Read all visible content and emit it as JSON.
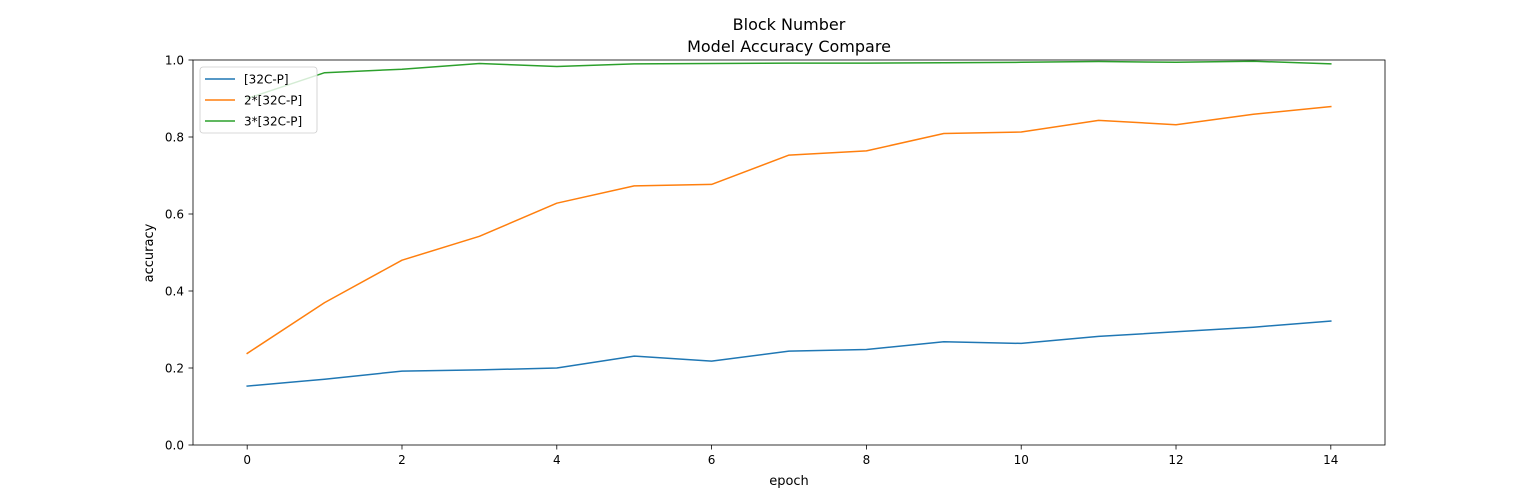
{
  "chart_data": {
    "type": "line",
    "title": "Block Number",
    "subtitle": "Model Accuracy Compare",
    "xlabel": "epoch",
    "ylabel": "accuracy",
    "xlim": [
      -0.7,
      14.7
    ],
    "ylim": [
      0.0,
      1.0
    ],
    "xticks": [
      0,
      2,
      4,
      6,
      8,
      10,
      12,
      14
    ],
    "yticks": [
      0.0,
      0.2,
      0.4,
      0.6,
      0.8,
      1.0
    ],
    "xtick_labels": [
      "0",
      "2",
      "4",
      "6",
      "8",
      "10",
      "12",
      "14"
    ],
    "ytick_labels": [
      "0.0",
      "0.2",
      "0.4",
      "0.6",
      "0.8",
      "1.0"
    ],
    "grid": false,
    "legend_position": "top-left",
    "x": [
      0,
      1,
      2,
      3,
      4,
      5,
      6,
      7,
      8,
      9,
      10,
      11,
      12,
      13,
      14
    ],
    "series": [
      {
        "name": "[32C-P]",
        "color": "#1f77b4",
        "values": [
          0.153,
          0.171,
          0.192,
          0.195,
          0.2,
          0.231,
          0.218,
          0.244,
          0.248,
          0.268,
          0.264,
          0.282,
          0.294,
          0.306,
          0.322
        ]
      },
      {
        "name": "2*[32C-P]",
        "color": "#ff7f0e",
        "values": [
          0.238,
          0.37,
          0.48,
          0.542,
          0.628,
          0.673,
          0.677,
          0.753,
          0.764,
          0.809,
          0.813,
          0.843,
          0.832,
          0.859,
          0.879
        ]
      },
      {
        "name": "3*[32C-P]",
        "color": "#2ca02c",
        "values": [
          0.9,
          0.967,
          0.976,
          0.991,
          0.983,
          0.99,
          0.991,
          0.992,
          0.992,
          0.993,
          0.994,
          0.996,
          0.994,
          0.997,
          0.99
        ]
      }
    ]
  }
}
